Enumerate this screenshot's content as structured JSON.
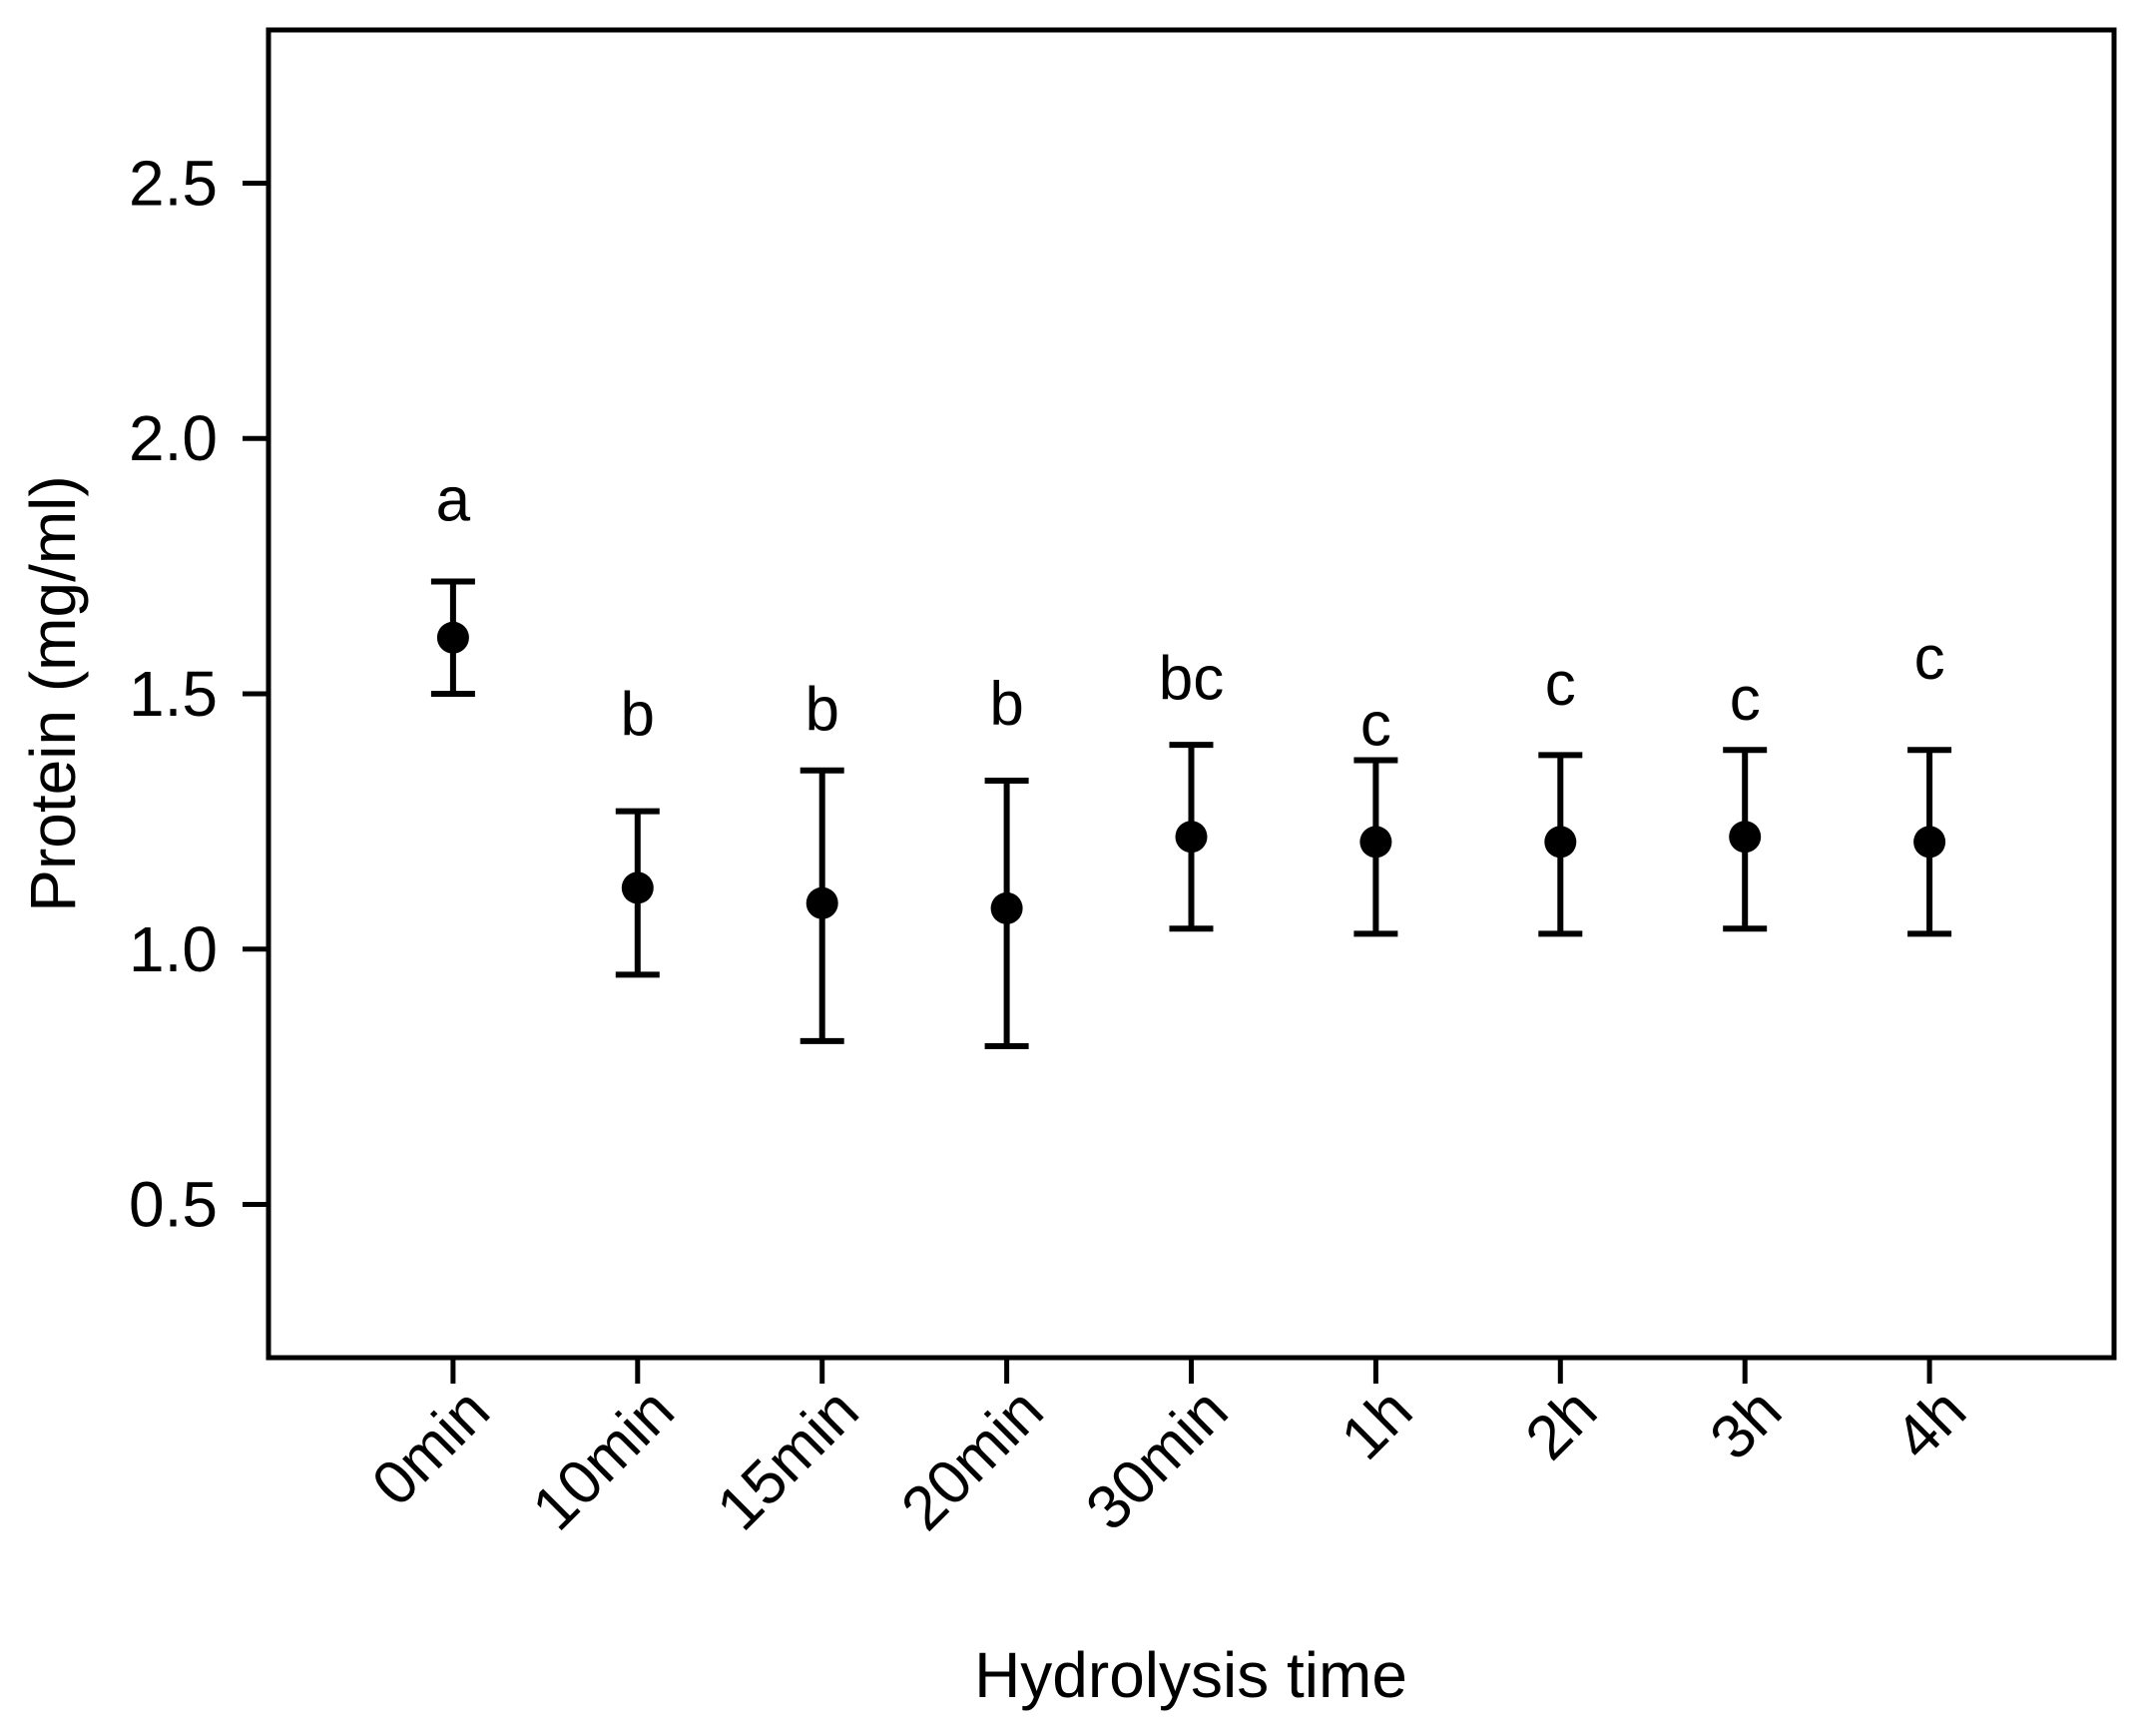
{
  "chart_data": {
    "type": "scatter",
    "subtype": "points-with-error-bars",
    "title": "",
    "xlabel": "Hydrolysis time",
    "ylabel": "Protein (mg/ml)",
    "categories": [
      "0min",
      "10min",
      "15min",
      "20min",
      "30min",
      "1h",
      "2h",
      "3h",
      "4h"
    ],
    "series": [
      {
        "name": "Protein",
        "means": [
          1.61,
          1.12,
          1.09,
          1.08,
          1.22,
          1.21,
          1.21,
          1.22,
          1.21
        ],
        "error_upper": [
          1.72,
          1.27,
          1.35,
          1.33,
          1.4,
          1.37,
          1.38,
          1.39,
          1.39
        ],
        "error_lower": [
          1.5,
          0.95,
          0.82,
          0.81,
          1.04,
          1.03,
          1.03,
          1.04,
          1.03
        ]
      }
    ],
    "significance_letters": [
      "a",
      "b",
      "b",
      "b",
      "bc",
      "c",
      "c",
      "c",
      "c"
    ],
    "significance_letter_y": [
      1.88,
      1.46,
      1.47,
      1.48,
      1.53,
      1.44,
      1.52,
      1.49,
      1.57
    ],
    "ylim": [
      0.2,
      2.8
    ],
    "yticks": [
      2.5,
      2.0,
      1.5,
      1.0,
      0.5
    ],
    "ytick_labels": [
      "2.5",
      "2.0",
      "1.5",
      "1.0",
      "0.5"
    ],
    "x_tick_label_rotation_deg": -45,
    "grid": false,
    "legend": "none",
    "marker": "filled-circle",
    "colors": {
      "points": "#000000",
      "error_bars": "#000000",
      "axis": "#000000",
      "text": "#000000",
      "background": "#ffffff"
    }
  }
}
